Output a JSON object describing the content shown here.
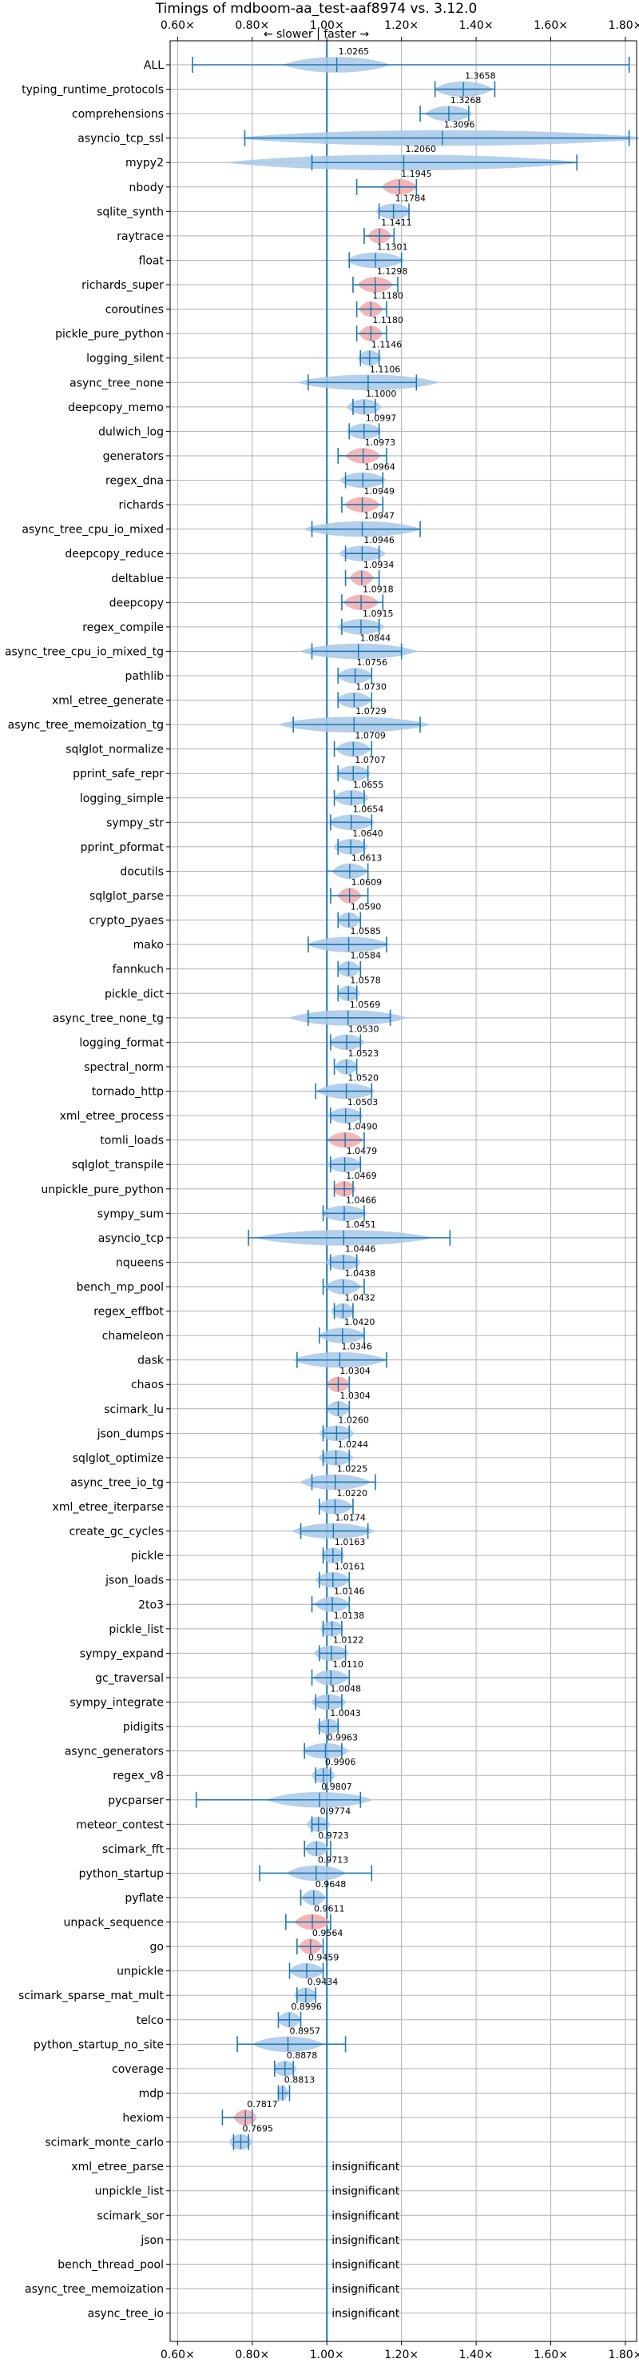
{
  "chart_data": {
    "type": "violin",
    "title": "Timings of mdboom-aa_test-aaf8974 vs. 3.12.0",
    "subtitle": "← slower | faster →",
    "xlim": [
      0.58,
      1.83
    ],
    "xticks": [
      "0.60×",
      "0.80×",
      "1.00×",
      "1.20×",
      "1.40×",
      "1.60×",
      "1.80×"
    ],
    "xtick_values": [
      0.6,
      0.8,
      1.0,
      1.2,
      1.4,
      1.6,
      1.8
    ],
    "reference_line": 1.0,
    "insignificant_text": "insignificant",
    "grid": true,
    "colors": {
      "violin": "#a8c8e8",
      "highlight": "#f4a8a8",
      "line": "#1f77b4"
    },
    "benchmarks": [
      {
        "name": "ALL",
        "value": "1.0265",
        "mean": 1.0265,
        "min": 0.64,
        "max": 1.81,
        "spread": 0.09,
        "hl": false
      },
      {
        "name": "typing_runtime_protocols",
        "value": "1.3658",
        "mean": 1.3658,
        "min": 1.29,
        "max": 1.45,
        "spread": 0.05,
        "hl": false
      },
      {
        "name": "comprehensions",
        "value": "1.3268",
        "mean": 1.3268,
        "min": 1.25,
        "max": 1.38,
        "spread": 0.04,
        "hl": false
      },
      {
        "name": "asyncio_tcp_ssl",
        "value": "1.3096",
        "mean": 1.3096,
        "min": 0.78,
        "max": 1.81,
        "spread": 0.35,
        "hl": false
      },
      {
        "name": "mypy2",
        "value": "1.2060",
        "mean": 1.206,
        "min": 0.96,
        "max": 1.67,
        "spread": 0.3,
        "hl": false
      },
      {
        "name": "nbody",
        "value": "1.1945",
        "mean": 1.1945,
        "min": 1.08,
        "max": 1.24,
        "spread": 0.03,
        "hl": true
      },
      {
        "name": "sqlite_synth",
        "value": "1.1784",
        "mean": 1.1784,
        "min": 1.14,
        "max": 1.22,
        "spread": 0.03,
        "hl": false
      },
      {
        "name": "raytrace",
        "value": "1.1411",
        "mean": 1.1411,
        "min": 1.1,
        "max": 1.18,
        "spread": 0.02,
        "hl": true
      },
      {
        "name": "float",
        "value": "1.1301",
        "mean": 1.1301,
        "min": 1.06,
        "max": 1.2,
        "spread": 0.05,
        "hl": false
      },
      {
        "name": "richards_super",
        "value": "1.1298",
        "mean": 1.1298,
        "min": 1.07,
        "max": 1.19,
        "spread": 0.03,
        "hl": true
      },
      {
        "name": "coroutines",
        "value": "1.1180",
        "mean": 1.118,
        "min": 1.08,
        "max": 1.16,
        "spread": 0.02,
        "hl": true
      },
      {
        "name": "pickle_pure_python",
        "value": "1.1180",
        "mean": 1.118,
        "min": 1.08,
        "max": 1.16,
        "spread": 0.02,
        "hl": true
      },
      {
        "name": "logging_silent",
        "value": "1.1146",
        "mean": 1.1146,
        "min": 1.09,
        "max": 1.14,
        "spread": 0.02,
        "hl": false
      },
      {
        "name": "async_tree_none",
        "value": "1.1106",
        "mean": 1.1106,
        "min": 0.95,
        "max": 1.24,
        "spread": 0.12,
        "hl": false
      },
      {
        "name": "deepcopy_memo",
        "value": "1.1000",
        "mean": 1.1,
        "min": 1.07,
        "max": 1.13,
        "spread": 0.03,
        "hl": false
      },
      {
        "name": "dulwich_log",
        "value": "1.0997",
        "mean": 1.0997,
        "min": 1.06,
        "max": 1.14,
        "spread": 0.03,
        "hl": false
      },
      {
        "name": "generators",
        "value": "1.0973",
        "mean": 1.0973,
        "min": 1.03,
        "max": 1.16,
        "spread": 0.03,
        "hl": true
      },
      {
        "name": "regex_dna",
        "value": "1.0964",
        "mean": 1.0964,
        "min": 1.05,
        "max": 1.15,
        "spread": 0.04,
        "hl": false
      },
      {
        "name": "richards",
        "value": "1.0949",
        "mean": 1.0949,
        "min": 1.04,
        "max": 1.15,
        "spread": 0.03,
        "hl": true
      },
      {
        "name": "async_tree_cpu_io_mixed",
        "value": "1.0947",
        "mean": 1.0947,
        "min": 0.96,
        "max": 1.25,
        "spread": 0.1,
        "hl": false
      },
      {
        "name": "deepcopy_reduce",
        "value": "1.0946",
        "mean": 1.0946,
        "min": 1.05,
        "max": 1.14,
        "spread": 0.04,
        "hl": false
      },
      {
        "name": "deltablue",
        "value": "1.0934",
        "mean": 1.0934,
        "min": 1.05,
        "max": 1.14,
        "spread": 0.02,
        "hl": true
      },
      {
        "name": "deepcopy",
        "value": "1.0918",
        "mean": 1.0918,
        "min": 1.04,
        "max": 1.15,
        "spread": 0.03,
        "hl": true
      },
      {
        "name": "regex_compile",
        "value": "1.0915",
        "mean": 1.0915,
        "min": 1.04,
        "max": 1.14,
        "spread": 0.04,
        "hl": false
      },
      {
        "name": "async_tree_cpu_io_mixed_tg",
        "value": "1.0844",
        "mean": 1.0844,
        "min": 0.96,
        "max": 1.2,
        "spread": 0.1,
        "hl": false
      },
      {
        "name": "pathlib",
        "value": "1.0756",
        "mean": 1.0756,
        "min": 1.03,
        "max": 1.12,
        "spread": 0.03,
        "hl": false
      },
      {
        "name": "xml_etree_generate",
        "value": "1.0730",
        "mean": 1.073,
        "min": 1.03,
        "max": 1.12,
        "spread": 0.03,
        "hl": false
      },
      {
        "name": "async_tree_memoization_tg",
        "value": "1.0729",
        "mean": 1.0729,
        "min": 0.91,
        "max": 1.25,
        "spread": 0.13,
        "hl": false
      },
      {
        "name": "sqlglot_normalize",
        "value": "1.0709",
        "mean": 1.0709,
        "min": 1.02,
        "max": 1.12,
        "spread": 0.03,
        "hl": false
      },
      {
        "name": "pprint_safe_repr",
        "value": "1.0707",
        "mean": 1.0707,
        "min": 1.03,
        "max": 1.11,
        "spread": 0.03,
        "hl": false
      },
      {
        "name": "logging_simple",
        "value": "1.0655",
        "mean": 1.0655,
        "min": 1.02,
        "max": 1.1,
        "spread": 0.03,
        "hl": false
      },
      {
        "name": "sympy_str",
        "value": "1.0654",
        "mean": 1.0654,
        "min": 1.01,
        "max": 1.12,
        "spread": 0.04,
        "hl": false
      },
      {
        "name": "pprint_pformat",
        "value": "1.0640",
        "mean": 1.064,
        "min": 1.03,
        "max": 1.1,
        "spread": 0.03,
        "hl": false
      },
      {
        "name": "docutils",
        "value": "1.0613",
        "mean": 1.0613,
        "min": 1.0,
        "max": 1.11,
        "spread": 0.03,
        "hl": false
      },
      {
        "name": "sqlglot_parse",
        "value": "1.0609",
        "mean": 1.0609,
        "min": 1.01,
        "max": 1.11,
        "spread": 0.02,
        "hl": true
      },
      {
        "name": "crypto_pyaes",
        "value": "1.0590",
        "mean": 1.059,
        "min": 1.03,
        "max": 1.09,
        "spread": 0.02,
        "hl": false
      },
      {
        "name": "mako",
        "value": "1.0585",
        "mean": 1.0585,
        "min": 0.95,
        "max": 1.16,
        "spread": 0.07,
        "hl": false
      },
      {
        "name": "fannkuch",
        "value": "1.0584",
        "mean": 1.0584,
        "min": 1.03,
        "max": 1.09,
        "spread": 0.02,
        "hl": false
      },
      {
        "name": "pickle_dict",
        "value": "1.0578",
        "mean": 1.0578,
        "min": 1.03,
        "max": 1.08,
        "spread": 0.02,
        "hl": false
      },
      {
        "name": "async_tree_none_tg",
        "value": "1.0569",
        "mean": 1.0569,
        "min": 0.95,
        "max": 1.17,
        "spread": 0.1,
        "hl": false
      },
      {
        "name": "logging_format",
        "value": "1.0530",
        "mean": 1.053,
        "min": 1.01,
        "max": 1.09,
        "spread": 0.03,
        "hl": false
      },
      {
        "name": "spectral_norm",
        "value": "1.0523",
        "mean": 1.0523,
        "min": 1.02,
        "max": 1.08,
        "spread": 0.02,
        "hl": false
      },
      {
        "name": "tornado_http",
        "value": "1.0520",
        "mean": 1.052,
        "min": 0.97,
        "max": 1.12,
        "spread": 0.05,
        "hl": false
      },
      {
        "name": "xml_etree_process",
        "value": "1.0503",
        "mean": 1.0503,
        "min": 1.01,
        "max": 1.09,
        "spread": 0.03,
        "hl": false
      },
      {
        "name": "tomli_loads",
        "value": "1.0490",
        "mean": 1.049,
        "min": 1.0,
        "max": 1.1,
        "spread": 0.03,
        "hl": true
      },
      {
        "name": "sqlglot_transpile",
        "value": "1.0479",
        "mean": 1.0479,
        "min": 1.01,
        "max": 1.09,
        "spread": 0.03,
        "hl": false
      },
      {
        "name": "unpickle_pure_python",
        "value": "1.0469",
        "mean": 1.0469,
        "min": 1.02,
        "max": 1.07,
        "spread": 0.02,
        "hl": true
      },
      {
        "name": "sympy_sum",
        "value": "1.0466",
        "mean": 1.0466,
        "min": 0.99,
        "max": 1.1,
        "spread": 0.04,
        "hl": false
      },
      {
        "name": "asyncio_tcp",
        "value": "1.0451",
        "mean": 1.0451,
        "min": 0.79,
        "max": 1.33,
        "spread": 0.15,
        "hl": false
      },
      {
        "name": "nqueens",
        "value": "1.0446",
        "mean": 1.0446,
        "min": 1.01,
        "max": 1.08,
        "spread": 0.03,
        "hl": false
      },
      {
        "name": "bench_mp_pool",
        "value": "1.0438",
        "mean": 1.0438,
        "min": 0.99,
        "max": 1.1,
        "spread": 0.03,
        "hl": false
      },
      {
        "name": "regex_effbot",
        "value": "1.0432",
        "mean": 1.0432,
        "min": 1.02,
        "max": 1.07,
        "spread": 0.02,
        "hl": false
      },
      {
        "name": "chameleon",
        "value": "1.0420",
        "mean": 1.042,
        "min": 0.98,
        "max": 1.1,
        "spread": 0.04,
        "hl": false
      },
      {
        "name": "dask",
        "value": "1.0346",
        "mean": 1.0346,
        "min": 0.92,
        "max": 1.16,
        "spread": 0.08,
        "hl": false
      },
      {
        "name": "chaos",
        "value": "1.0304",
        "mean": 1.0304,
        "min": 1.0,
        "max": 1.06,
        "spread": 0.02,
        "hl": true
      },
      {
        "name": "scimark_lu",
        "value": "1.0304",
        "mean": 1.0304,
        "min": 1.0,
        "max": 1.06,
        "spread": 0.02,
        "hl": false
      },
      {
        "name": "json_dumps",
        "value": "1.0260",
        "mean": 1.026,
        "min": 0.99,
        "max": 1.06,
        "spread": 0.03,
        "hl": false
      },
      {
        "name": "sqlglot_optimize",
        "value": "1.0244",
        "mean": 1.0244,
        "min": 0.99,
        "max": 1.06,
        "spread": 0.03,
        "hl": false
      },
      {
        "name": "async_tree_io_tg",
        "value": "1.0225",
        "mean": 1.0225,
        "min": 0.96,
        "max": 1.13,
        "spread": 0.06,
        "hl": false
      },
      {
        "name": "xml_etree_iterparse",
        "value": "1.0220",
        "mean": 1.022,
        "min": 0.98,
        "max": 1.07,
        "spread": 0.03,
        "hl": false
      },
      {
        "name": "create_gc_cycles",
        "value": "1.0174",
        "mean": 1.0174,
        "min": 0.93,
        "max": 1.11,
        "spread": 0.07,
        "hl": false
      },
      {
        "name": "pickle",
        "value": "1.0163",
        "mean": 1.0163,
        "min": 0.99,
        "max": 1.04,
        "spread": 0.02,
        "hl": false
      },
      {
        "name": "json_loads",
        "value": "1.0161",
        "mean": 1.0161,
        "min": 0.98,
        "max": 1.06,
        "spread": 0.03,
        "hl": false
      },
      {
        "name": "2to3",
        "value": "1.0146",
        "mean": 1.0146,
        "min": 0.96,
        "max": 1.06,
        "spread": 0.03,
        "hl": false
      },
      {
        "name": "pickle_list",
        "value": "1.0138",
        "mean": 1.0138,
        "min": 0.99,
        "max": 1.04,
        "spread": 0.02,
        "hl": false
      },
      {
        "name": "sympy_expand",
        "value": "1.0122",
        "mean": 1.0122,
        "min": 0.98,
        "max": 1.05,
        "spread": 0.03,
        "hl": false
      },
      {
        "name": "gc_traversal",
        "value": "1.0110",
        "mean": 1.011,
        "min": 0.96,
        "max": 1.06,
        "spread": 0.03,
        "hl": false
      },
      {
        "name": "sympy_integrate",
        "value": "1.0048",
        "mean": 1.0048,
        "min": 0.97,
        "max": 1.04,
        "spread": 0.03,
        "hl": false
      },
      {
        "name": "pidigits",
        "value": "1.0043",
        "mean": 1.0043,
        "min": 0.98,
        "max": 1.03,
        "spread": 0.02,
        "hl": false
      },
      {
        "name": "async_generators",
        "value": "0.9963",
        "mean": 0.9963,
        "min": 0.94,
        "max": 1.04,
        "spread": 0.04,
        "hl": false
      },
      {
        "name": "regex_v8",
        "value": "0.9906",
        "mean": 0.9906,
        "min": 0.97,
        "max": 1.01,
        "spread": 0.02,
        "hl": false
      },
      {
        "name": "pycparser",
        "value": "0.9807",
        "mean": 0.9807,
        "min": 0.65,
        "max": 1.09,
        "spread": 0.09,
        "hl": false
      },
      {
        "name": "meteor_contest",
        "value": "0.9774",
        "mean": 0.9774,
        "min": 0.96,
        "max": 1.0,
        "spread": 0.02,
        "hl": false
      },
      {
        "name": "scimark_fft",
        "value": "0.9723",
        "mean": 0.9723,
        "min": 0.94,
        "max": 1.01,
        "spread": 0.02,
        "hl": false
      },
      {
        "name": "python_startup",
        "value": "0.9713",
        "mean": 0.9713,
        "min": 0.82,
        "max": 1.12,
        "spread": 0.05,
        "hl": false
      },
      {
        "name": "pyflate",
        "value": "0.9648",
        "mean": 0.9648,
        "min": 0.93,
        "max": 1.0,
        "spread": 0.02,
        "hl": false
      },
      {
        "name": "unpack_sequence",
        "value": "0.9611",
        "mean": 0.9611,
        "min": 0.89,
        "max": 1.01,
        "spread": 0.03,
        "hl": true
      },
      {
        "name": "go",
        "value": "0.9564",
        "mean": 0.9564,
        "min": 0.92,
        "max": 0.99,
        "spread": 0.02,
        "hl": true
      },
      {
        "name": "unpickle",
        "value": "0.9459",
        "mean": 0.9459,
        "min": 0.9,
        "max": 0.99,
        "spread": 0.03,
        "hl": false
      },
      {
        "name": "scimark_sparse_mat_mult",
        "value": "0.9434",
        "mean": 0.9434,
        "min": 0.92,
        "max": 0.97,
        "spread": 0.02,
        "hl": false
      },
      {
        "name": "telco",
        "value": "0.8996",
        "mean": 0.8996,
        "min": 0.87,
        "max": 0.93,
        "spread": 0.02,
        "hl": false
      },
      {
        "name": "python_startup_no_site",
        "value": "0.8957",
        "mean": 0.8957,
        "min": 0.76,
        "max": 1.05,
        "spread": 0.06,
        "hl": false
      },
      {
        "name": "coverage",
        "value": "0.8878",
        "mean": 0.8878,
        "min": 0.86,
        "max": 0.91,
        "spread": 0.02,
        "hl": false
      },
      {
        "name": "mdp",
        "value": "0.8813",
        "mean": 0.8813,
        "min": 0.87,
        "max": 0.9,
        "spread": 0.01,
        "hl": false
      },
      {
        "name": "hexiom",
        "value": "0.7817",
        "mean": 0.7817,
        "min": 0.72,
        "max": 0.8,
        "spread": 0.02,
        "hl": true
      },
      {
        "name": "scimark_monte_carlo",
        "value": "0.7695",
        "mean": 0.7695,
        "min": 0.75,
        "max": 0.79,
        "spread": 0.02,
        "hl": false
      },
      {
        "name": "xml_etree_parse",
        "value": "insignificant"
      },
      {
        "name": "unpickle_list",
        "value": "insignificant"
      },
      {
        "name": "scimark_sor",
        "value": "insignificant"
      },
      {
        "name": "json",
        "value": "insignificant"
      },
      {
        "name": "bench_thread_pool",
        "value": "insignificant"
      },
      {
        "name": "async_tree_memoization",
        "value": "insignificant"
      },
      {
        "name": "async_tree_io",
        "value": "insignificant"
      }
    ]
  }
}
